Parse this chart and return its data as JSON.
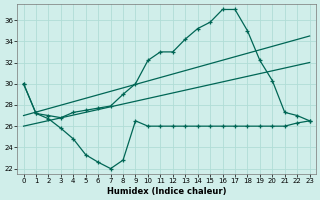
{
  "xlabel": "Humidex (Indice chaleur)",
  "bg_color": "#d0eeea",
  "grid_color": "#b0ddd6",
  "line_color": "#006655",
  "xlim": [
    -0.5,
    23.5
  ],
  "ylim": [
    21.5,
    37.5
  ],
  "xticks": [
    0,
    1,
    2,
    3,
    4,
    5,
    6,
    7,
    8,
    9,
    10,
    11,
    12,
    13,
    14,
    15,
    16,
    17,
    18,
    19,
    20,
    21,
    22,
    23
  ],
  "yticks": [
    22,
    24,
    26,
    28,
    30,
    32,
    34,
    36
  ],
  "curve1_x": [
    0,
    1,
    2,
    3,
    4,
    5,
    6,
    7,
    8,
    9,
    10,
    11,
    12,
    13,
    14,
    15,
    16,
    17,
    18,
    19,
    20,
    21,
    22,
    23
  ],
  "curve1_y": [
    30.0,
    27.2,
    26.7,
    25.8,
    24.8,
    23.3,
    22.6,
    22.0,
    22.8,
    26.5,
    26.0,
    26.0,
    26.0,
    26.0,
    26.0,
    26.0,
    26.0,
    26.0,
    26.0,
    26.0,
    26.0,
    26.0,
    26.3,
    26.5
  ],
  "curve2_x": [
    0,
    1,
    2,
    3,
    4,
    5,
    6,
    7,
    8,
    9,
    10,
    11,
    12,
    13,
    14,
    15,
    16,
    17,
    18,
    19,
    20,
    21,
    22,
    23
  ],
  "curve2_y": [
    30.0,
    27.2,
    27.0,
    26.8,
    27.3,
    27.5,
    27.7,
    27.9,
    29.0,
    30.0,
    32.2,
    33.0,
    33.0,
    34.2,
    35.2,
    35.8,
    37.0,
    37.0,
    35.0,
    32.2,
    30.3,
    27.3,
    27.0,
    26.5
  ],
  "trend1_x": [
    0,
    23
  ],
  "trend1_y": [
    27.0,
    34.5
  ],
  "trend2_x": [
    0,
    23
  ],
  "trend2_y": [
    26.0,
    32.0
  ]
}
